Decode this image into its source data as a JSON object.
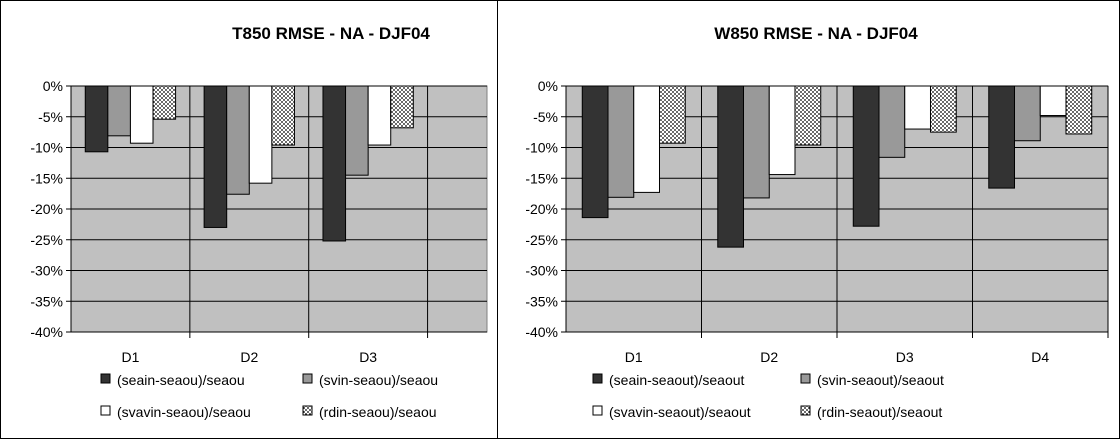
{
  "colors": {
    "plot_bg": "#c0c0c0",
    "series": [
      "#333333",
      "#999999",
      "#ffffff",
      "pattern-dots"
    ]
  },
  "chart_data": [
    {
      "type": "bar",
      "title": "T850 RMSE - NA - DJF04",
      "categories": [
        "D1",
        "D2",
        "D3"
      ],
      "ylim": [
        -40,
        0
      ],
      "ytick_labels": [
        "0%",
        "-5%",
        "-10%",
        "-15%",
        "-20%",
        "-25%",
        "-30%",
        "-35%",
        "-40%"
      ],
      "grid": true,
      "legend_position": "bottom",
      "series": [
        {
          "name": "(seain-seaou)/seaou",
          "values": [
            -10.7,
            -23.0,
            -25.2
          ]
        },
        {
          "name": "(svin-seaou)/seaou",
          "values": [
            -8.1,
            -17.6,
            -14.5
          ]
        },
        {
          "name": "(svavin-seaou)/seaou",
          "values": [
            -9.3,
            -15.8,
            -9.6
          ]
        },
        {
          "name": "(rdin-seaou)/seaou",
          "values": [
            -5.4,
            -9.6,
            -6.8
          ]
        }
      ]
    },
    {
      "type": "bar",
      "title": "W850 RMSE - NA - DJF04",
      "categories": [
        "D1",
        "D2",
        "D3",
        "D4"
      ],
      "ylim": [
        -40,
        0
      ],
      "ytick_labels": [
        "0%",
        "-5%",
        "-10%",
        "-15%",
        "-20%",
        "-25%",
        "-30%",
        "-35%",
        "-40%"
      ],
      "grid": true,
      "legend_position": "bottom",
      "series": [
        {
          "name": "(seain-seaout)/seaout",
          "values": [
            -21.4,
            -26.2,
            -22.8,
            -16.6
          ]
        },
        {
          "name": "(svin-seaout)/seaout",
          "values": [
            -18.1,
            -18.2,
            -11.6,
            -8.9
          ]
        },
        {
          "name": "(svavin-seaout)/seaout",
          "values": [
            -17.3,
            -14.4,
            -7.0,
            -4.8
          ]
        },
        {
          "name": "(rdin-seaout)/seaout",
          "values": [
            -9.3,
            -9.6,
            -7.5,
            -7.8
          ]
        }
      ]
    }
  ]
}
